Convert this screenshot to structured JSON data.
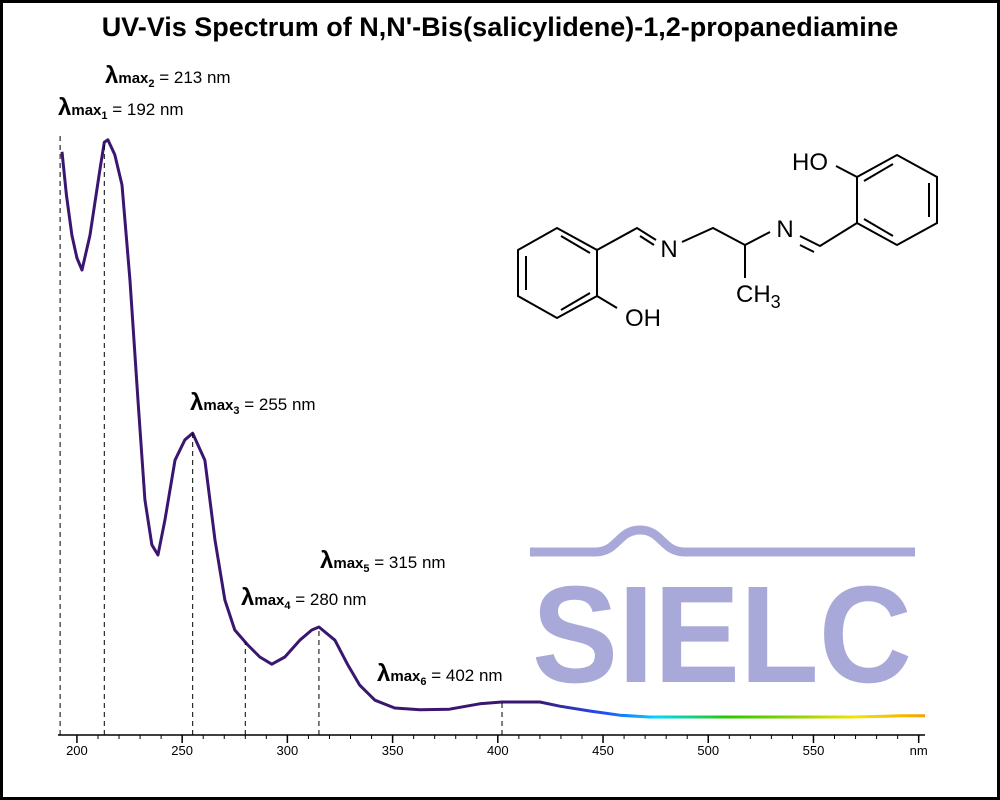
{
  "chart_data": {
    "type": "line",
    "title": "UV-Vis Spectrum of N,N'-Bis(salicylidene)-1,2-propanediamine",
    "xlim": [
      191,
      603
    ],
    "ylim": [
      0,
      100
    ],
    "xticks": [
      200,
      250,
      300,
      350,
      400,
      450,
      500,
      550,
      {
        "value": 600,
        "label": "nm"
      }
    ],
    "xminorticks": [
      200,
      210,
      220,
      230,
      240,
      250,
      260,
      270,
      280,
      290,
      300,
      310,
      320,
      330,
      340,
      350,
      360,
      370,
      380,
      390,
      400,
      410,
      420,
      430,
      440,
      450,
      460,
      470,
      480,
      490,
      500,
      510,
      520,
      530,
      540,
      550,
      560,
      570,
      580,
      590,
      600
    ],
    "series": [
      {
        "color": "#3b1670",
        "x": [
          192.9,
          195,
          197.6,
          200,
          202.4,
          206.2,
          210.9,
          213,
          214.7,
          218,
          221.4,
          225.2,
          229,
          232.3,
          235.6,
          238.5,
          241.8,
          246.6,
          251.3,
          255,
          260.8,
          265.6,
          270.3,
          275,
          281.2,
          286.9,
          292.6,
          298.8,
          305.9,
          311.6,
          315,
          322.6,
          328.7,
          334.4,
          341.6,
          351,
          363,
          377,
          391.4,
          402,
          420,
          429.5,
          443.7,
          458,
          472,
          496,
          520,
          544,
          568,
          591.6,
          603
        ],
        "values": [
          97.2,
          90,
          83.3,
          79.5,
          77.5,
          83.3,
          94.2,
          98.8,
          99.2,
          96.7,
          91.7,
          75.8,
          55.8,
          39.2,
          31.7,
          30,
          35.8,
          45.8,
          49.2,
          50.3,
          45.8,
          32.5,
          22.5,
          17.5,
          15,
          13,
          11.8,
          13,
          15.8,
          17.5,
          18,
          15.8,
          11.7,
          8.3,
          5.8,
          4.5,
          4.2,
          4.3,
          5.2,
          5.5,
          5.5,
          4.8,
          4,
          3.3,
          3,
          3,
          3,
          3,
          3,
          3.2,
          3.2
        ]
      }
    ],
    "annotations": [
      {
        "symbol": "λ",
        "sub": "max",
        "index": "1",
        "text": " = 192 nm",
        "x": 192
      },
      {
        "symbol": "λ",
        "sub": "max",
        "index": "2",
        "text": " = 213 nm",
        "x": 213
      },
      {
        "symbol": "λ",
        "sub": "max",
        "index": "3",
        "text": " = 255 nm",
        "x": 255
      },
      {
        "symbol": "λ",
        "sub": "max",
        "index": "4",
        "text": " = 280 nm",
        "x": 280
      },
      {
        "symbol": "λ",
        "sub": "max",
        "index": "5",
        "text": " = 315 nm",
        "x": 315
      },
      {
        "symbol": "λ",
        "sub": "max",
        "index": "6",
        "text": " = 402 nm",
        "x": 402
      }
    ]
  },
  "structure": {
    "labels": [
      {
        "text": "HO"
      },
      {
        "text": "N"
      },
      {
        "text": "N"
      },
      {
        "text": "OH"
      },
      {
        "text": "CH",
        "sub": "3"
      }
    ]
  },
  "watermark": "SIELC"
}
